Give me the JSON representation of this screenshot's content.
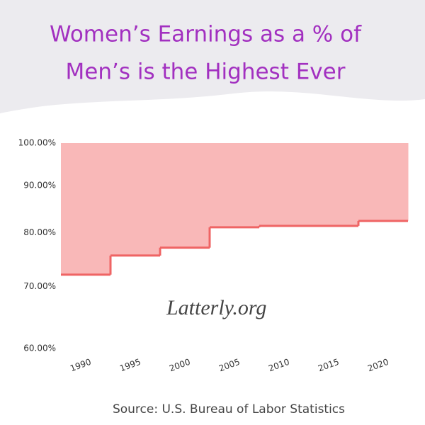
{
  "chart_data": {
    "type": "step",
    "title_lines": [
      "Women’s Earnings as a % of",
      "Men’s is the Highest Ever"
    ],
    "source": "Source: U.S. Bureau of Labor Statistics",
    "watermark": "Latterly.org",
    "x": [
      1988,
      1993,
      1998,
      2003,
      2008,
      2018
    ],
    "values": [
      72.1,
      75.6,
      77.1,
      81.1,
      81.4,
      82.4
    ],
    "line_color": "#ef6464",
    "fill_color": "#f9b8b8",
    "title_color": "#a230c0",
    "xlim": [
      1988,
      2023
    ],
    "xticks": [
      1990,
      1995,
      2000,
      2005,
      2010,
      2015,
      2020
    ],
    "ylim": [
      60,
      100
    ],
    "log_y": true,
    "yticks": [
      {
        "value": 60,
        "label": "60.00%"
      },
      {
        "value": 70,
        "label": "70.00%"
      },
      {
        "value": 80,
        "label": "80.00%"
      },
      {
        "value": 90,
        "label": "90.00%"
      },
      {
        "value": 100,
        "label": "100.00%"
      }
    ]
  }
}
